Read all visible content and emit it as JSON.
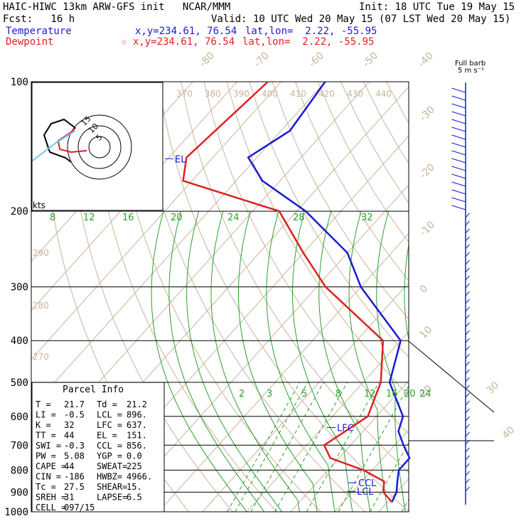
{
  "header": {
    "title": "HAIC-HIWC 13km ARW-GFS init   NCAR/MMM",
    "init": "Init: 18 UTC Tue 19 May 15",
    "fcst": "Fcst:   16 h",
    "valid": "Valid: 10 UTC Wed 20 May 15 (07 LST Wed 20 May 15)",
    "temp_label": "Temperature",
    "temp_xy": "x,y=234.61, 76.54",
    "temp_latlon": "lat,lon=  2.22, -55.95",
    "dew_label": "Dewpoint",
    "dew_xy": "x,y=234.61, 76.54",
    "dew_latlon": "lat,lon=  2.22, -55.95",
    "barb_note_1": "Full barb",
    "barb_note_2": "5 m s⁻¹"
  },
  "chart_data": {
    "type": "line",
    "title": "Skew-T log-P",
    "y_axis": {
      "label": "",
      "scale": "log",
      "ticks": [
        100,
        200,
        300,
        400,
        500,
        600,
        700,
        800,
        900,
        1000
      ],
      "range": [
        100,
        1000
      ]
    },
    "isotherm_labels": [
      "-80",
      "-70",
      "-60",
      "-50",
      "-40",
      "-30",
      "-20",
      "-10",
      "0",
      "10",
      "20",
      "30",
      "40"
    ],
    "mixing_ratio_labels_upper": [
      "8",
      "12",
      "16",
      "20",
      "24",
      "28",
      "32"
    ],
    "mixing_ratio_labels_lower": [
      "2",
      "3",
      "5",
      "8",
      "12",
      "16",
      "20",
      "24"
    ],
    "theta_labels": [
      "370",
      "380",
      "390",
      "400",
      "410",
      "420",
      "430",
      "440"
    ],
    "theta_labels_left": [
      "290",
      "280",
      "270"
    ],
    "series": [
      {
        "name": "Temperature",
        "color": "#1a1ad6",
        "points": [
          [
            100,
            -80
          ],
          [
            130,
            -78
          ],
          [
            150,
            -82
          ],
          [
            170,
            -74
          ],
          [
            200,
            -58
          ],
          [
            250,
            -40
          ],
          [
            300,
            -30
          ],
          [
            400,
            -10
          ],
          [
            500,
            -4
          ],
          [
            600,
            6
          ],
          [
            650,
            8
          ],
          [
            700,
            12
          ],
          [
            750,
            16
          ],
          [
            800,
            16
          ],
          [
            850,
            18
          ],
          [
            900,
            20
          ],
          [
            950,
            21
          ]
        ]
      },
      {
        "name": "Dewpoint",
        "color": "#e02020",
        "points": [
          [
            100,
            -93
          ],
          [
            150,
            -96
          ],
          [
            170,
            -92
          ],
          [
            200,
            -64
          ],
          [
            250,
            -50
          ],
          [
            300,
            -38
          ],
          [
            400,
            -14
          ],
          [
            500,
            -6
          ],
          [
            600,
            -2
          ],
          [
            700,
            -6
          ],
          [
            750,
            -2
          ],
          [
            800,
            8
          ],
          [
            850,
            15
          ],
          [
            900,
            17
          ],
          [
            950,
            21
          ]
        ]
      }
    ],
    "levels": [
      {
        "label": "EL",
        "p": 151
      },
      {
        "label": "LFC",
        "p": 637
      },
      {
        "label": "CCL",
        "p": 856
      },
      {
        "label": "LCL",
        "p": 896
      }
    ],
    "hodograph": {
      "unit_label": "kts",
      "ring_labels": [
        "5",
        "10",
        "15"
      ]
    },
    "parcel_info": {
      "heading": "Parcel Info",
      "rows": [
        [
          "T  =",
          "21.7",
          "Td =",
          "21.2"
        ],
        [
          "LI =",
          "-0.5",
          "LCL =",
          "896."
        ],
        [
          "K  =",
          "32",
          "LFC =",
          "637."
        ],
        [
          "TT =",
          "44",
          "EL  =",
          "151."
        ],
        [
          "SWI =",
          "-0.3",
          "CCL =",
          "856."
        ],
        [
          "PW =",
          "5.08",
          "YGP =",
          "0.0"
        ],
        [
          "CAPE =",
          "44",
          "SWEAT=",
          "225"
        ],
        [
          "CIN =",
          "-186",
          "HWBZ=",
          "4966."
        ],
        [
          "Tc =",
          "27.5",
          "SHEAR=",
          "15."
        ],
        [
          "SREH =",
          "31",
          "LAPSE=",
          "6.5"
        ],
        [
          "CELL =",
          "097/15",
          "",
          ""
        ]
      ]
    }
  }
}
